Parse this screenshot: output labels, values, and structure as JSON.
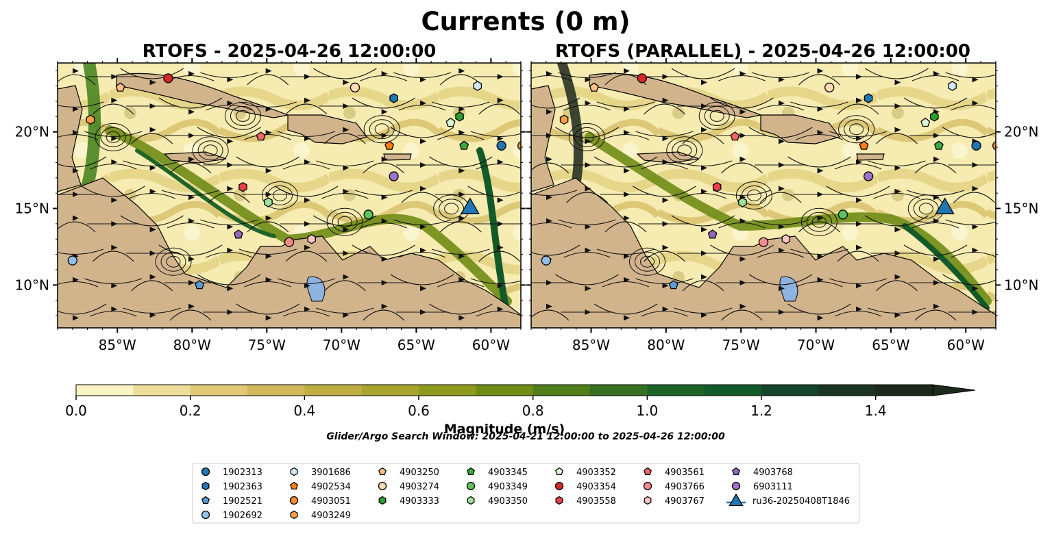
{
  "figure": {
    "title": "Currents (0 m)",
    "search_window": "Glider/Argo Search Window: 2025-04-21 12:00:00 to 2025-04-26 12:00:00"
  },
  "panels": [
    {
      "title": "RTOFS - 2025-04-26 12:00:00",
      "ytick_side": "left"
    },
    {
      "title": "RTOFS (PARALLEL) - 2025-04-26 12:00:00",
      "ytick_side": "right"
    }
  ],
  "map": {
    "lon_range": [
      -89,
      -58
    ],
    "lat_range": [
      7.2,
      24.5
    ],
    "xticks": [
      {
        "lon": -85,
        "label": "85°W"
      },
      {
        "lon": -80,
        "label": "80°W"
      },
      {
        "lon": -75,
        "label": "75°W"
      },
      {
        "lon": -70,
        "label": "70°W"
      },
      {
        "lon": -65,
        "label": "65°W"
      },
      {
        "lon": -60,
        "label": "60°W"
      }
    ],
    "yticks": [
      {
        "lat": 20,
        "label": "20°N"
      },
      {
        "lat": 15,
        "label": "15°N"
      },
      {
        "lat": 10,
        "label": "10°N"
      }
    ],
    "land_color": "#d2b48c",
    "lake_color": "#8fb3e0"
  },
  "colorbar": {
    "label": "Magnitude (m/s)",
    "min": 0.0,
    "max": 1.5,
    "extend": "max",
    "ticks": [
      {
        "value": 0.0,
        "label": "0.0"
      },
      {
        "value": 0.2,
        "label": "0.2"
      },
      {
        "value": 0.4,
        "label": "0.4"
      },
      {
        "value": 0.6,
        "label": "0.6"
      },
      {
        "value": 0.8,
        "label": "0.8"
      },
      {
        "value": 1.0,
        "label": "1.0"
      },
      {
        "value": 1.2,
        "label": "1.2"
      },
      {
        "value": 1.4,
        "label": "1.4"
      }
    ],
    "colors": [
      "#faf3c2",
      "#eedd9a",
      "#e0c874",
      "#d1b858",
      "#bfae42",
      "#a9a42e",
      "#8e9a1c",
      "#6f8c16",
      "#507e1a",
      "#347020",
      "#1e6426",
      "#125a2a",
      "#15452a",
      "#1b3524",
      "#1c281c"
    ]
  },
  "legend": {
    "columns": [
      [
        {
          "label": "1902313",
          "shape": "circle",
          "color": "#1f77b4"
        },
        {
          "label": "1902363",
          "shape": "hexagon",
          "color": "#1f77b4"
        },
        {
          "label": "1902521",
          "shape": "pentagon",
          "color": "#5b9bd5"
        },
        {
          "label": "1902692",
          "shape": "circle",
          "color": "#8fc1e8"
        }
      ],
      [
        {
          "label": "3901686",
          "shape": "hexagon",
          "color": "#cfe8f7"
        },
        {
          "label": "4902534",
          "shape": "pentagon",
          "color": "#ff7f0e"
        },
        {
          "label": "4903051",
          "shape": "circle",
          "color": "#ff8c2a"
        },
        {
          "label": "4903249",
          "shape": "hexagon",
          "color": "#ffa040"
        }
      ],
      [
        {
          "label": "4903250",
          "shape": "pentagon",
          "color": "#ffbf86"
        },
        {
          "label": "4903274",
          "shape": "circle",
          "color": "#ffdcb8"
        },
        {
          "label": "4903333",
          "shape": "hexagon",
          "color": "#2ca02c"
        }
      ],
      [
        {
          "label": "4903345",
          "shape": "pentagon",
          "color": "#3caa3c"
        },
        {
          "label": "4903349",
          "shape": "circle",
          "color": "#5bc45b"
        },
        {
          "label": "4903350",
          "shape": "hexagon",
          "color": "#9ee09e"
        }
      ],
      [
        {
          "label": "4903352",
          "shape": "pentagon",
          "color": "#d8f7d2"
        },
        {
          "label": "4903354",
          "shape": "circle",
          "color": "#d62728"
        },
        {
          "label": "4903558",
          "shape": "hexagon",
          "color": "#e8424a"
        }
      ],
      [
        {
          "label": "4903561",
          "shape": "pentagon",
          "color": "#f06468"
        },
        {
          "label": "4903766",
          "shape": "circle",
          "color": "#f28a8e"
        },
        {
          "label": "4903767",
          "shape": "hexagon",
          "color": "#ffc2c6"
        }
      ],
      [
        {
          "label": "4903768",
          "shape": "pentagon",
          "color": "#9467bd"
        },
        {
          "label": "6903111",
          "shape": "circle",
          "color": "#9d72c8"
        },
        {
          "label": "ru36-20250408T1846",
          "shape": "triangle-line",
          "color": "#1f77b4"
        }
      ]
    ]
  },
  "markers": [
    {
      "id": "1902313",
      "lon": -59.3,
      "lat": 19.1,
      "shape": "circle",
      "color": "#1f77b4"
    },
    {
      "id": "1902363",
      "lon": -66.5,
      "lat": 22.2,
      "shape": "hexagon",
      "color": "#1f77b4"
    },
    {
      "id": "1902521",
      "lon": -79.5,
      "lat": 10.0,
      "shape": "pentagon",
      "color": "#5b9bd5"
    },
    {
      "id": "1902692",
      "lon": -88.0,
      "lat": 11.6,
      "shape": "circle",
      "color": "#8fc1e8"
    },
    {
      "id": "3901686",
      "lon": -60.9,
      "lat": 23.0,
      "shape": "hexagon",
      "color": "#cfe8f7"
    },
    {
      "id": "4902534",
      "lon": -66.8,
      "lat": 19.1,
      "shape": "pentagon",
      "color": "#ff7f0e"
    },
    {
      "id": "4903051",
      "lon": -57.9,
      "lat": 19.1,
      "shape": "circle",
      "color": "#ff8c2a"
    },
    {
      "id": "4903249",
      "lon": -86.8,
      "lat": 20.8,
      "shape": "hexagon",
      "color": "#ffa040"
    },
    {
      "id": "4903250",
      "lon": -84.8,
      "lat": 22.9,
      "shape": "pentagon",
      "color": "#ffbf86"
    },
    {
      "id": "4903274",
      "lon": -69.1,
      "lat": 22.9,
      "shape": "circle",
      "color": "#ffdcb8"
    },
    {
      "id": "4903333",
      "lon": -62.1,
      "lat": 21.0,
      "shape": "hexagon",
      "color": "#2ca02c"
    },
    {
      "id": "4903345",
      "lon": -61.8,
      "lat": 19.1,
      "shape": "pentagon",
      "color": "#3caa3c"
    },
    {
      "id": "4903349",
      "lon": -68.2,
      "lat": 14.6,
      "shape": "circle",
      "color": "#5bc45b"
    },
    {
      "id": "4903350",
      "lon": -74.9,
      "lat": 15.4,
      "shape": "hexagon",
      "color": "#9ee09e"
    },
    {
      "id": "4903352",
      "lon": -62.7,
      "lat": 20.6,
      "shape": "pentagon",
      "color": "#d8f7d2"
    },
    {
      "id": "4903354",
      "lon": -81.6,
      "lat": 23.5,
      "shape": "circle",
      "color": "#d62728"
    },
    {
      "id": "4903558",
      "lon": -76.6,
      "lat": 16.4,
      "shape": "hexagon",
      "color": "#e8424a"
    },
    {
      "id": "4903561",
      "lon": -75.4,
      "lat": 19.7,
      "shape": "pentagon",
      "color": "#f06468"
    },
    {
      "id": "4903766",
      "lon": -73.5,
      "lat": 12.8,
      "shape": "circle",
      "color": "#f28a8e"
    },
    {
      "id": "4903767",
      "lon": -72.0,
      "lat": 13.0,
      "shape": "hexagon",
      "color": "#ffc2c6"
    },
    {
      "id": "4903768",
      "lon": -76.9,
      "lat": 13.3,
      "shape": "pentagon",
      "color": "#9467bd"
    },
    {
      "id": "6903111",
      "lon": -66.5,
      "lat": 17.1,
      "shape": "circle",
      "color": "#9d72c8"
    },
    {
      "id": "ru36-20250408T1846",
      "lon": -61.4,
      "lat": 14.9,
      "shape": "triangle",
      "color": "#1f77b4"
    }
  ]
}
